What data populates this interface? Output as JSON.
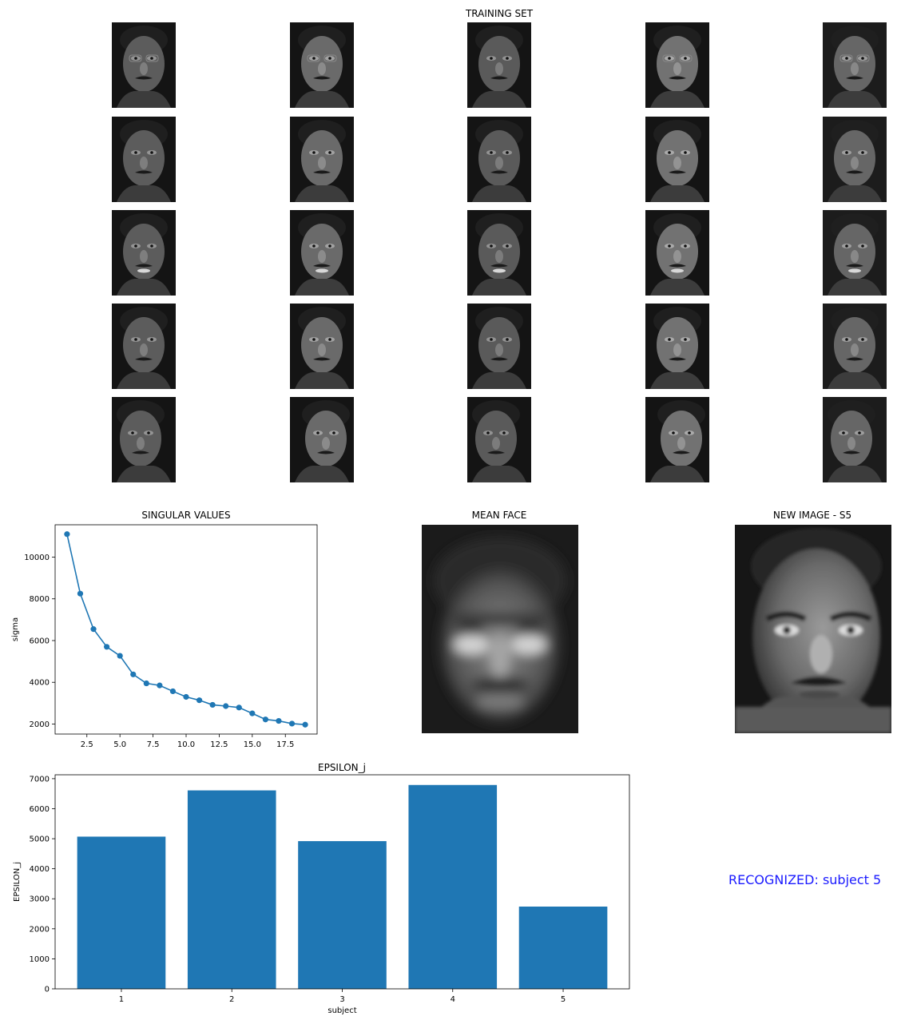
{
  "training_set": {
    "title": "TRAINING SET",
    "rows": 5,
    "columns": 5,
    "image_type": "grayscale face photo"
  },
  "mean_face": {
    "title": "MEAN FACE"
  },
  "new_image": {
    "title": "NEW IMAGE - S5"
  },
  "result": {
    "text": "RECOGNIZED: subject 5",
    "color": "#1a1aff"
  },
  "chart_data": [
    {
      "type": "line",
      "title": "SINGULAR VALUES",
      "xlabel": "",
      "ylabel": "sigma",
      "x": [
        1,
        2,
        3,
        4,
        5,
        6,
        7,
        8,
        9,
        10,
        11,
        12,
        13,
        14,
        15,
        16,
        17,
        18,
        19
      ],
      "y": [
        11100,
        8250,
        6550,
        5700,
        5270,
        4380,
        3950,
        3850,
        3570,
        3300,
        3140,
        2920,
        2860,
        2790,
        2510,
        2220,
        2150,
        2020,
        1970
      ],
      "xticks": [
        "2.5",
        "5.0",
        "7.5",
        "10.0",
        "12.5",
        "15.0",
        "17.5"
      ],
      "xtick_values": [
        2.5,
        5.0,
        7.5,
        10.0,
        12.5,
        15.0,
        17.5
      ],
      "yticks": [
        "2000",
        "4000",
        "6000",
        "8000",
        "10000"
      ],
      "ytick_values": [
        2000,
        4000,
        6000,
        8000,
        10000
      ],
      "xlim": [
        0.1,
        19.9
      ],
      "ylim": [
        1520,
        11550
      ],
      "marker": "circle",
      "color": "#1f77b4",
      "grid": false
    },
    {
      "type": "bar",
      "title": "EPSILON_j",
      "xlabel": "subject",
      "ylabel": "EPSILON_j",
      "categories": [
        "1",
        "2",
        "3",
        "4",
        "5"
      ],
      "values": [
        5070,
        6610,
        4920,
        6790,
        2740
      ],
      "yticks": [
        "0",
        "1000",
        "2000",
        "3000",
        "4000",
        "5000",
        "6000",
        "7000"
      ],
      "ytick_values": [
        0,
        1000,
        2000,
        3000,
        4000,
        5000,
        6000,
        7000
      ],
      "ylim": [
        0,
        7130
      ],
      "color": "#1f77b4",
      "grid": false
    }
  ]
}
